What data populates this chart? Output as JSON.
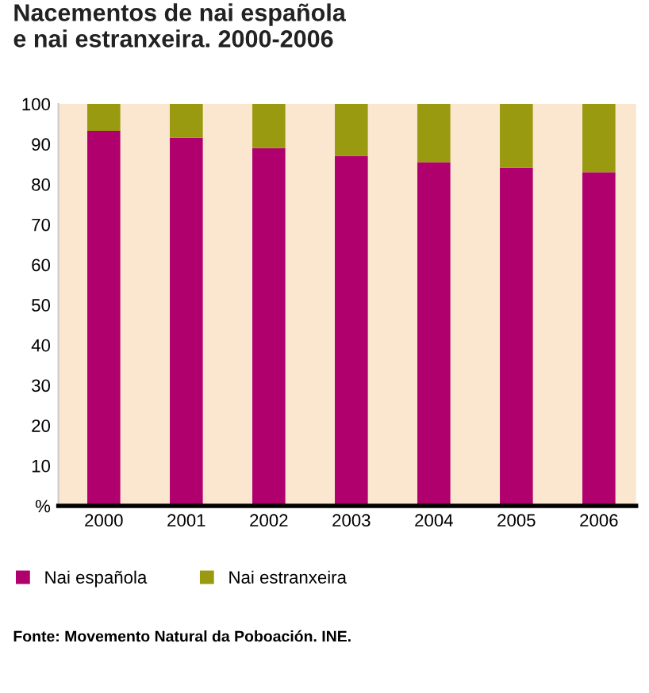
{
  "chart_data": {
    "type": "bar",
    "title": "Nacementos de nai española\ne nai estranxeira. 2000-2006",
    "stacked": true,
    "categories": [
      "2000",
      "2001",
      "2002",
      "2003",
      "2004",
      "2005",
      "2006"
    ],
    "series": [
      {
        "name": "Nai española",
        "color": "#b0006e",
        "values": [
          93.3,
          91.6,
          89.0,
          87.1,
          85.5,
          84.1,
          83.0
        ]
      },
      {
        "name": "Nai estranxeira",
        "color": "#9a9a10",
        "values": [
          6.7,
          8.4,
          11.0,
          12.9,
          14.5,
          15.9,
          17.0
        ]
      }
    ],
    "ylim": [
      0,
      100
    ],
    "yticks": [
      {
        "value": 0,
        "label": "%"
      },
      10,
      20,
      30,
      40,
      50,
      60,
      70,
      80,
      90,
      100
    ],
    "grid": false,
    "legend": "bottom left",
    "annotations": [
      "Fonte: Movemento Natural da Poboación. INE."
    ]
  }
}
